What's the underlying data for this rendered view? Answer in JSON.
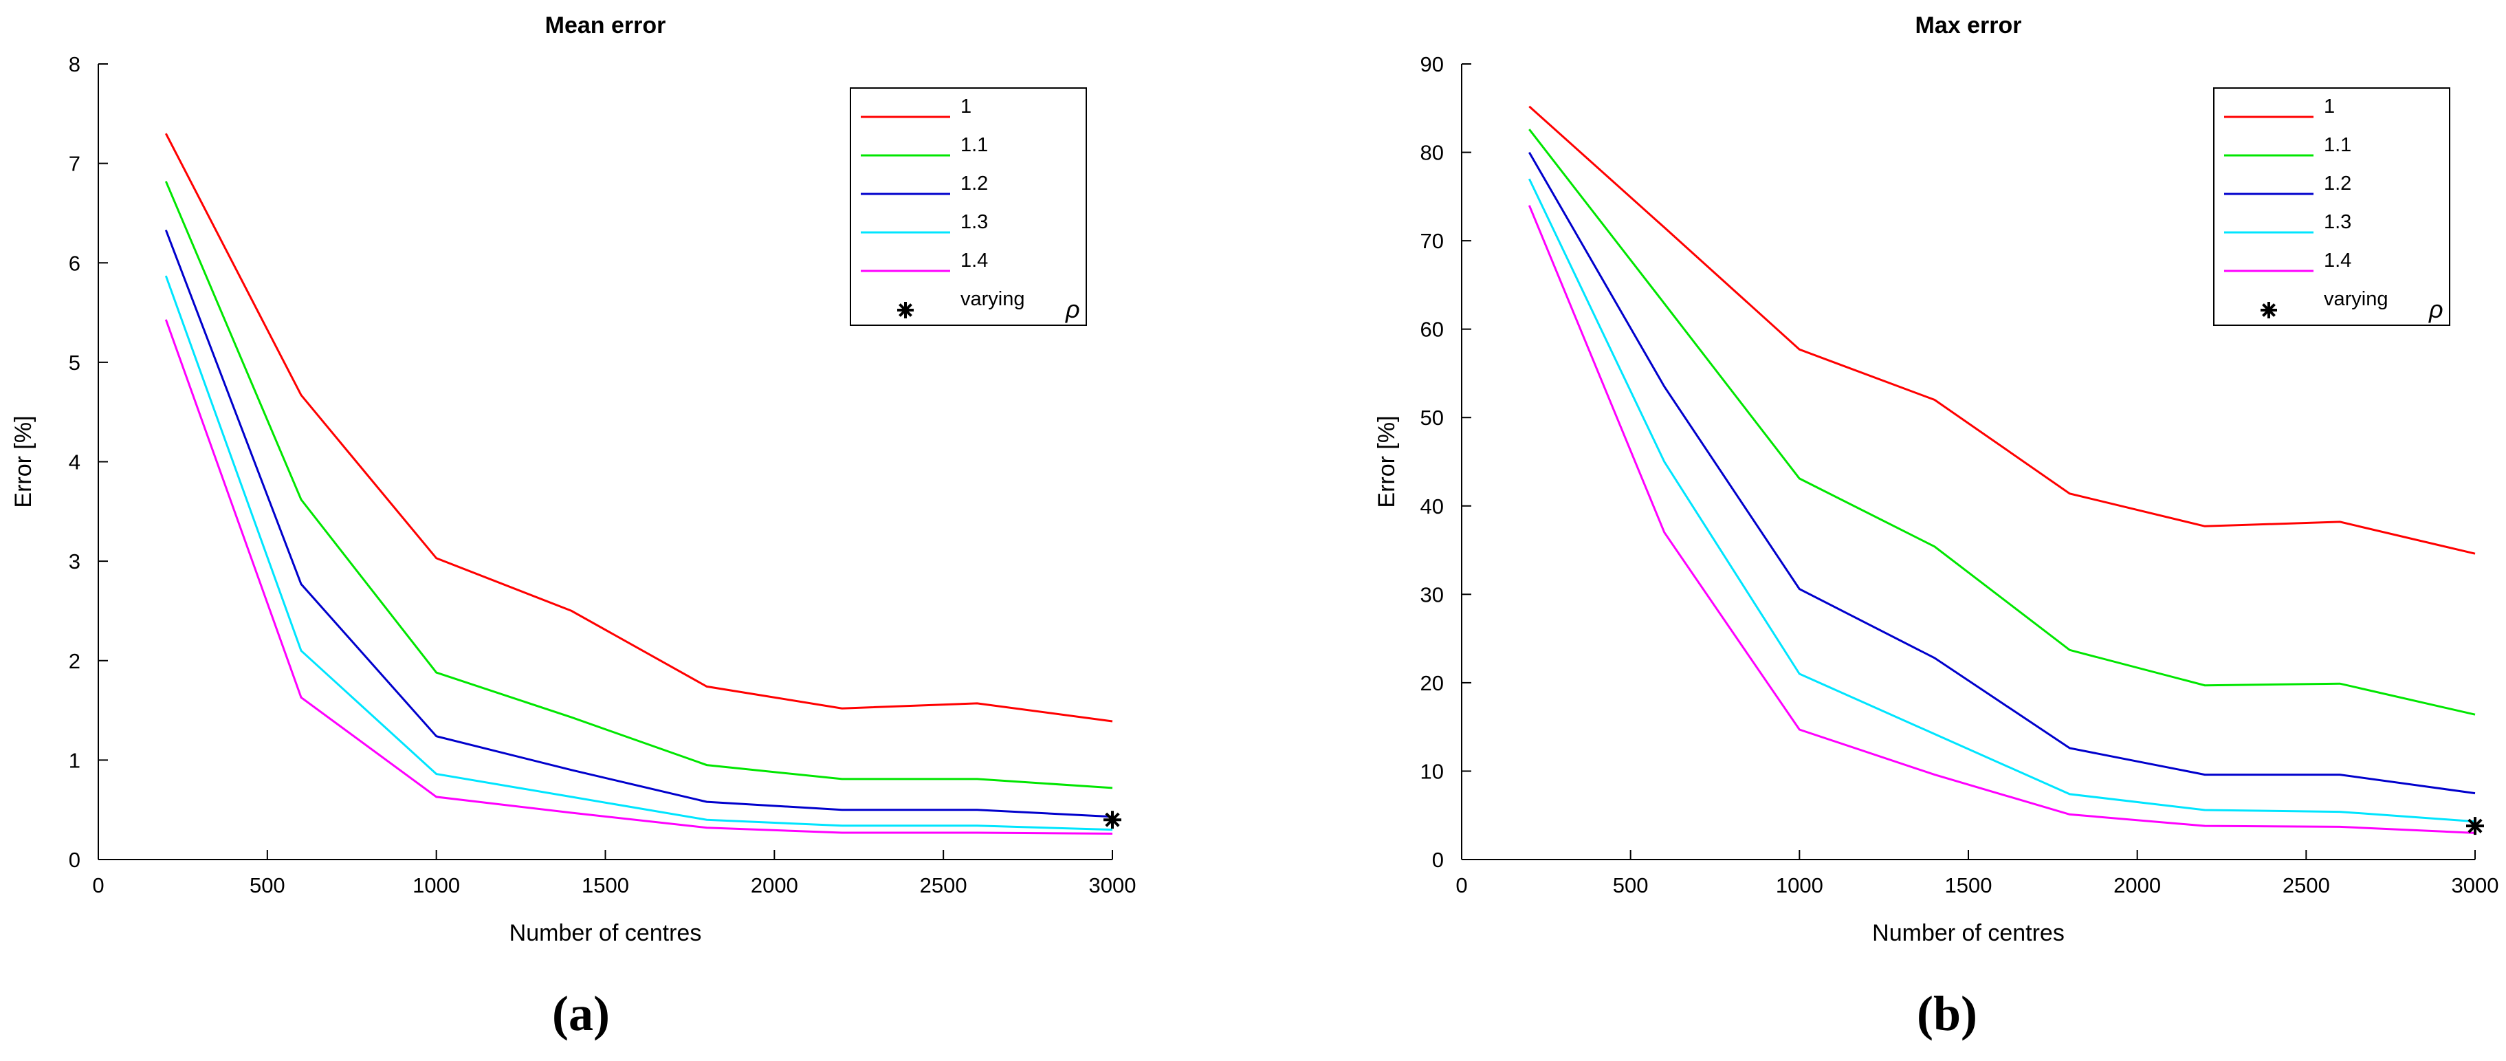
{
  "chart_data": [
    {
      "type": "line",
      "title": "Mean error",
      "xlabel": "Number of centres",
      "ylabel": "Error [%]",
      "panel_label": "(a)",
      "xlim": [
        0,
        3000
      ],
      "ylim": [
        0,
        8
      ],
      "xticks": [
        0,
        500,
        1000,
        1500,
        2000,
        2500,
        3000
      ],
      "yticks": [
        0,
        1,
        2,
        3,
        4,
        5,
        6,
        7,
        8
      ],
      "grid": false,
      "legend_position": "top-right",
      "x": [
        200,
        600,
        1000,
        1400,
        1800,
        2200,
        2600,
        3000
      ],
      "series": [
        {
          "name": "1",
          "color": "#ff0000",
          "values": [
            7.3,
            4.67,
            3.03,
            2.5,
            1.74,
            1.52,
            1.57,
            1.39
          ]
        },
        {
          "name": "1.1",
          "color": "#00e600",
          "values": [
            6.82,
            3.62,
            1.88,
            1.43,
            0.95,
            0.81,
            0.81,
            0.72
          ]
        },
        {
          "name": "1.2",
          "color": "#0000cc",
          "values": [
            6.33,
            2.77,
            1.24,
            0.9,
            0.58,
            0.5,
            0.5,
            0.43
          ]
        },
        {
          "name": "1.3",
          "color": "#00e5ff",
          "values": [
            5.87,
            2.1,
            0.86,
            0.63,
            0.4,
            0.34,
            0.34,
            0.3
          ]
        },
        {
          "name": "1.4",
          "color": "#ff00ff",
          "values": [
            5.43,
            1.63,
            0.63,
            0.47,
            0.32,
            0.27,
            0.27,
            0.26
          ]
        }
      ],
      "varying": {
        "name": "varying",
        "symbol": "ρ",
        "x": 3000,
        "y": 0.4
      }
    },
    {
      "type": "line",
      "title": "Max error",
      "xlabel": "Number of centres",
      "ylabel": "Error [%]",
      "panel_label": "(b)",
      "xlim": [
        0,
        3000
      ],
      "ylim": [
        0,
        90
      ],
      "xticks": [
        0,
        500,
        1000,
        1500,
        2000,
        2500,
        3000
      ],
      "yticks": [
        0,
        10,
        20,
        30,
        40,
        50,
        60,
        70,
        80,
        90
      ],
      "grid": false,
      "legend_position": "top-right",
      "x": [
        200,
        600,
        1000,
        1400,
        1800,
        2200,
        2600,
        3000
      ],
      "series": [
        {
          "name": "1",
          "color": "#ff0000",
          "values": [
            85.2,
            71.5,
            57.7,
            52.0,
            41.4,
            37.7,
            38.2,
            34.6
          ]
        },
        {
          "name": "1.1",
          "color": "#00e600",
          "values": [
            82.6,
            62.9,
            43.1,
            35.4,
            23.7,
            19.7,
            19.9,
            16.4
          ]
        },
        {
          "name": "1.2",
          "color": "#0000cc",
          "values": [
            80.0,
            53.5,
            30.6,
            22.8,
            12.6,
            9.6,
            9.6,
            7.5
          ]
        },
        {
          "name": "1.3",
          "color": "#00e5ff",
          "values": [
            77.0,
            45.0,
            21.0,
            14.2,
            7.4,
            5.6,
            5.4,
            4.3
          ]
        },
        {
          "name": "1.4",
          "color": "#ff00ff",
          "values": [
            74.0,
            37.0,
            14.7,
            9.6,
            5.1,
            3.8,
            3.7,
            3.0
          ]
        }
      ],
      "varying": {
        "name": "varying",
        "symbol": "ρ",
        "x": 3000,
        "y": 3.8
      }
    }
  ]
}
